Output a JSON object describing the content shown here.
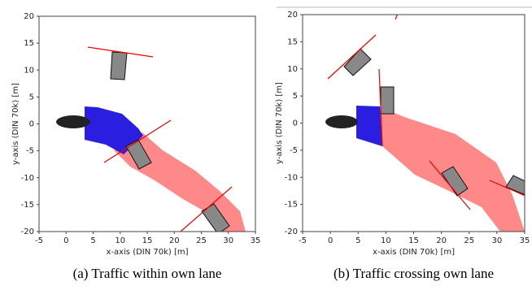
{
  "chart_data": [
    {
      "type": "scene",
      "xlabel": "x-axis (DIN 70k) [m]",
      "ylabel": "y-axis (DIN 70k) [m]",
      "caption": "(a) Traffic within own lane",
      "xlim": [
        -5,
        35
      ],
      "ylim": [
        -20,
        20
      ],
      "xticks": [
        -5,
        0,
        5,
        10,
        15,
        20,
        25,
        30,
        35
      ],
      "yticks": [
        -20,
        -15,
        -10,
        -5,
        0,
        5,
        10,
        15,
        20
      ]
    },
    {
      "type": "scene",
      "xlabel": "x-axis (DIN 70k) [m]",
      "ylabel": "y-axis (DIN 70k) [m]",
      "caption": "(b) Traffic crossing own lane",
      "xlim": [
        -5,
        35
      ],
      "ylim": [
        -20,
        20
      ],
      "xticks": [
        -5,
        0,
        5,
        10,
        15,
        20,
        25,
        30,
        35
      ],
      "yticks": [
        -20,
        -15,
        -10,
        -5,
        0,
        5,
        10,
        15,
        20
      ]
    }
  ]
}
